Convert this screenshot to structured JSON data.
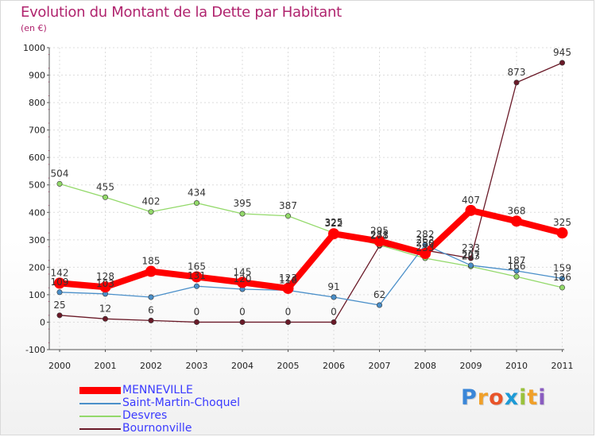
{
  "title": "Evolution du Montant de la Dette par Habitant",
  "unit": "(en €)",
  "logo": {
    "letters": [
      "P",
      "r",
      "o",
      "x",
      "i",
      "t",
      "i"
    ],
    "colors": [
      "#3a86d8",
      "#f0a02a",
      "#e8542a",
      "#1d9ad6",
      "#9ac23c",
      "#f0a02a",
      "#8a5cc0"
    ]
  },
  "chart_data": {
    "type": "line",
    "x": [
      "2000",
      "2001",
      "2002",
      "2003",
      "2004",
      "2005",
      "2006",
      "2007",
      "2008",
      "2009",
      "2010",
      "2011"
    ],
    "ylim": [
      -100,
      1000
    ],
    "yticks": [
      -100,
      0,
      100,
      200,
      300,
      400,
      500,
      600,
      700,
      800,
      900,
      1000
    ],
    "grid": true,
    "legend_position": "bottom-left",
    "series": [
      {
        "name": "MENNEVILLE",
        "color": "#ff0000",
        "values": [
          142,
          128,
          185,
          165,
          145,
          123,
          322,
          295,
          250,
          407,
          368,
          325
        ],
        "labels": [
          "142",
          "128",
          "185",
          "165",
          "145",
          "123",
          "322",
          "295",
          "250",
          "407",
          "368",
          "325"
        ]
      },
      {
        "name": "Saint-Martin-Choquel",
        "color": "#4a8fc9",
        "values": [
          109,
          103,
          91,
          131,
          120,
          116,
          91,
          62,
          282,
          207,
          187,
          159
        ],
        "labels": [
          "109",
          "103",
          "",
          "131",
          "120",
          "116",
          "91",
          "62",
          "282",
          "207",
          "187",
          "159"
        ]
      },
      {
        "name": "Desvres",
        "color": "#93d96a",
        "values": [
          504,
          455,
          402,
          434,
          395,
          387,
          325,
          281,
          233,
          203,
          166,
          126
        ],
        "labels": [
          "504",
          "455",
          "402",
          "434",
          "395",
          "387",
          "325",
          "281",
          "233",
          "203",
          "166",
          "126"
        ]
      },
      {
        "name": "Bournonville",
        "color": "#6a1a28",
        "values": [
          25,
          12,
          6,
          0,
          0,
          0,
          0,
          278,
          262,
          233,
          873,
          945
        ],
        "labels": [
          "25",
          "12",
          "6",
          "0",
          "0",
          "0",
          "0",
          "278",
          "262",
          "233",
          "873",
          "945"
        ]
      }
    ]
  }
}
